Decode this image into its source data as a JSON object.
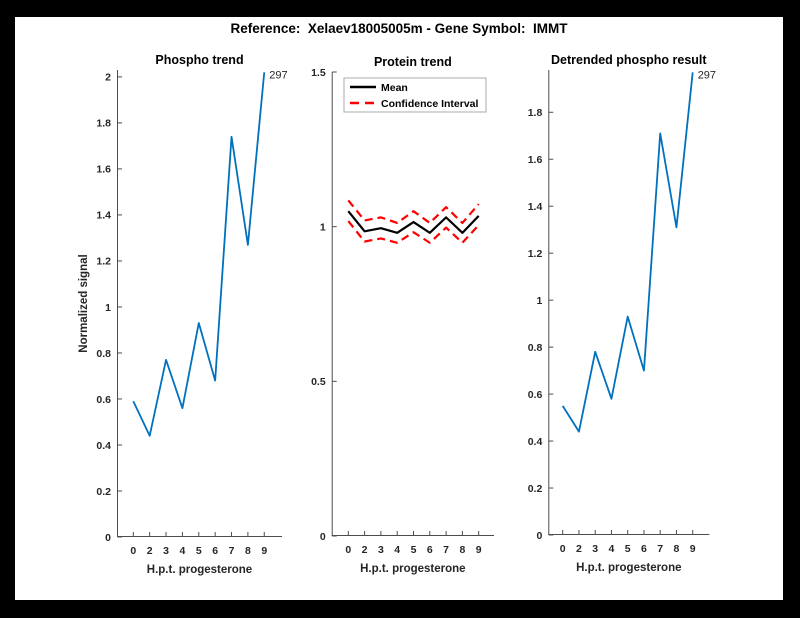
{
  "window": {
    "background": "#000000",
    "figure_background": "#ffffff"
  },
  "header": {
    "title": "Reference:  Xelaev18005005m - Gene Symbol:  IMMT"
  },
  "colors": {
    "trend_blue": "#0072BD",
    "mean_black": "#000000",
    "ci_red": "#FF0000",
    "axis_gray": "#4d4d4d"
  },
  "chart_data": [
    {
      "type": "line",
      "title": "Phospho trend",
      "xlabel": "H.p.t. progesterone",
      "ylabel": "Normalized signal",
      "x_ticklabels": [
        "0",
        "2",
        "3",
        "4",
        "5",
        "6",
        "7",
        "8",
        "9"
      ],
      "values": [
        0.59,
        0.44,
        0.77,
        0.56,
        0.93,
        0.68,
        1.74,
        1.27,
        2.02
      ],
      "ylim": [
        0,
        2.03
      ],
      "ytick_values": [
        0,
        0.2,
        0.4,
        0.6,
        0.8,
        1,
        1.2,
        1.4,
        1.6,
        1.8,
        2
      ],
      "ytick_labels": [
        "0",
        "0.2",
        "0.4",
        "0.6",
        "0.8",
        "1",
        "1.2",
        "1.4",
        "1.6",
        "1.8",
        "2"
      ],
      "annotation": "297",
      "line_color": "#0072BD",
      "grid": false
    },
    {
      "type": "line",
      "title": "Protein trend",
      "xlabel": "H.p.t. progesterone",
      "ylabel": "",
      "x_ticklabels": [
        "0",
        "2",
        "3",
        "4",
        "5",
        "6",
        "7",
        "8",
        "9"
      ],
      "series": [
        {
          "name": "Mean",
          "color": "#000000",
          "style": "solid",
          "values": [
            1.05,
            0.985,
            0.995,
            0.98,
            1.015,
            0.98,
            1.03,
            0.98,
            1.035
          ]
        },
        {
          "name": "Confidence Interval",
          "color": "#FF0000",
          "style": "dashed",
          "values_upper": [
            1.085,
            1.02,
            1.03,
            1.012,
            1.05,
            1.012,
            1.063,
            1.012,
            1.073
          ],
          "values_lower": [
            1.018,
            0.952,
            0.962,
            0.948,
            0.982,
            0.948,
            0.997,
            0.948,
            1.005
          ]
        }
      ],
      "legend": {
        "position": "northwest",
        "entries": [
          {
            "label": "Mean",
            "color": "#000000",
            "style": "solid"
          },
          {
            "label": "Confidence Interval",
            "color": "#FF0000",
            "style": "dashed"
          }
        ]
      },
      "ylim": [
        0,
        1.5
      ],
      "ytick_values": [
        0,
        0.5,
        1,
        1.5
      ],
      "ytick_labels": [
        "0",
        "0.5",
        "1",
        "1.5"
      ],
      "grid": false
    },
    {
      "type": "line",
      "title": "Detrended phospho result",
      "xlabel": "H.p.t. progesterone",
      "ylabel": "",
      "x_ticklabels": [
        "0",
        "2",
        "3",
        "4",
        "5",
        "6",
        "7",
        "8",
        "9"
      ],
      "values": [
        0.55,
        0.44,
        0.78,
        0.58,
        0.93,
        0.7,
        1.71,
        1.31,
        1.97
      ],
      "ylim": [
        0,
        1.98
      ],
      "ytick_values": [
        0,
        0.2,
        0.4,
        0.6,
        0.8,
        1,
        1.2,
        1.4,
        1.6,
        1.8
      ],
      "ytick_labels": [
        "0",
        "0.2",
        "0.4",
        "0.6",
        "0.8",
        "1",
        "1.2",
        "1.4",
        "1.6",
        "1.8"
      ],
      "annotation": "297",
      "line_color": "#0072BD",
      "grid": false
    }
  ]
}
